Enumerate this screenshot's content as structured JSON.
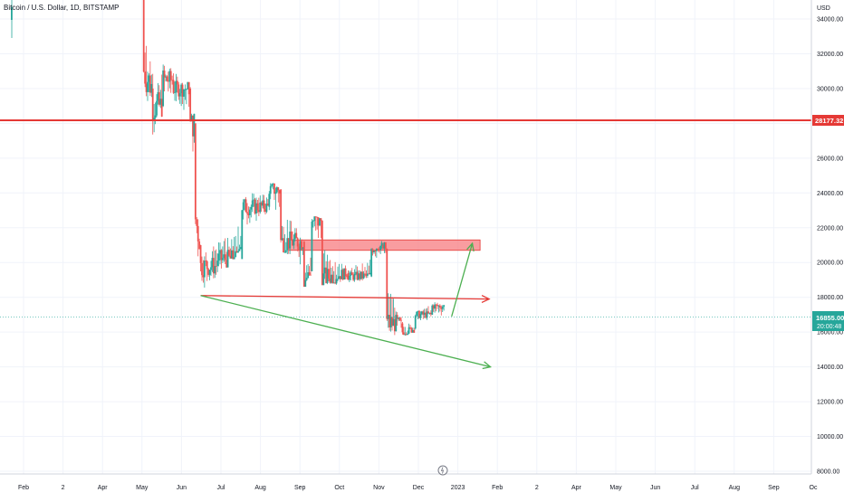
{
  "header": {
    "symbol_title": "Bitcoin / U.S. Dollar, 1D, BITSTAMP"
  },
  "price_axis": {
    "currency": "USD",
    "ticks": [
      "34000.00",
      "32000.00",
      "30000.00",
      "28000.00",
      "26000.00",
      "24000.00",
      "22000.00",
      "20000.00",
      "18000.00",
      "16000.00",
      "14000.00",
      "12000.00",
      "10000.00",
      "8000.00"
    ],
    "resistance_label": "28177.32",
    "current_price_label": "16855.00",
    "countdown_label": "20:00:48"
  },
  "time_axis": {
    "ticks": [
      "Feb",
      "2",
      "Apr",
      "May",
      "Jun",
      "Jul",
      "Aug",
      "Sep",
      "Oct",
      "Nov",
      "Dec",
      "2023",
      "Feb",
      "2",
      "Apr",
      "May",
      "Jun",
      "Jul",
      "Aug",
      "Sep",
      "Oc"
    ]
  },
  "colors": {
    "up": "#26a69a",
    "down": "#ef5350",
    "resistance_line": "#e53935",
    "trend_green": "#4caf50",
    "zone_fill": "#f77c80",
    "current_price_bg": "#26a69a"
  },
  "chart_data": {
    "type": "candlestick",
    "ylim": [
      7500,
      35500
    ],
    "grid": true,
    "ohlc_sample": [
      {
        "date": "2022-05-05",
        "open": 36500,
        "high": 36600,
        "low": 30000,
        "close": 31000
      },
      {
        "date": "2022-05-12",
        "open": 30000,
        "high": 31800,
        "low": 26500,
        "close": 29000
      },
      {
        "date": "2022-05-20",
        "open": 29000,
        "high": 32500,
        "low": 28500,
        "close": 30500
      },
      {
        "date": "2022-05-28",
        "open": 30500,
        "high": 31500,
        "low": 28800,
        "close": 30000
      },
      {
        "date": "2022-06-10",
        "open": 30000,
        "high": 30200,
        "low": 27500,
        "close": 28000
      },
      {
        "date": "2022-06-14",
        "open": 28000,
        "high": 28000,
        "low": 20500,
        "close": 22500
      },
      {
        "date": "2022-06-18",
        "open": 21000,
        "high": 21500,
        "low": 17600,
        "close": 19800
      },
      {
        "date": "2022-07-01",
        "open": 19800,
        "high": 21800,
        "low": 18800,
        "close": 20200
      },
      {
        "date": "2022-07-20",
        "open": 20200,
        "high": 24200,
        "low": 21000,
        "close": 23200
      },
      {
        "date": "2022-08-10",
        "open": 23200,
        "high": 24800,
        "low": 22800,
        "close": 24200
      },
      {
        "date": "2022-08-19",
        "open": 24200,
        "high": 24400,
        "low": 20800,
        "close": 21200
      },
      {
        "date": "2022-09-06",
        "open": 21200,
        "high": 21500,
        "low": 18600,
        "close": 19000
      },
      {
        "date": "2022-09-12",
        "open": 19500,
        "high": 22700,
        "low": 19400,
        "close": 22400
      },
      {
        "date": "2022-09-20",
        "open": 22400,
        "high": 22500,
        "low": 18700,
        "close": 19100
      },
      {
        "date": "2022-10-10",
        "open": 19400,
        "high": 20000,
        "low": 18600,
        "close": 19200
      },
      {
        "date": "2022-10-28",
        "open": 19200,
        "high": 21000,
        "low": 19000,
        "close": 20800
      },
      {
        "date": "2022-11-06",
        "open": 21000,
        "high": 21400,
        "low": 20200,
        "close": 20800
      },
      {
        "date": "2022-11-09",
        "open": 20800,
        "high": 20800,
        "low": 15600,
        "close": 16500
      },
      {
        "date": "2022-11-21",
        "open": 16500,
        "high": 16800,
        "low": 15600,
        "close": 16000
      },
      {
        "date": "2022-12-01",
        "open": 16200,
        "high": 17300,
        "low": 16000,
        "close": 17000
      },
      {
        "date": "2022-12-14",
        "open": 17000,
        "high": 18000,
        "low": 16800,
        "close": 17500
      },
      {
        "date": "2022-12-24",
        "open": 17500,
        "high": 17600,
        "low": 16400,
        "close": 16855
      }
    ],
    "annotations": [
      {
        "kind": "horizontal_line",
        "price": 28177.32
      },
      {
        "kind": "resistance_zone",
        "price_low": 20700,
        "price_high": 21300,
        "from": "2022-08-25",
        "to": "2023-01-20"
      },
      {
        "kind": "arrow_line",
        "from": {
          "date": "2022-06-18",
          "price": 18100
        },
        "to": {
          "date": "2023-01-27",
          "price": 17900
        }
      },
      {
        "kind": "arrow_line",
        "from": {
          "date": "2022-06-18",
          "price": 18100
        },
        "to": {
          "date": "2023-01-28",
          "price": 14000
        }
      },
      {
        "kind": "arrow_line",
        "from": {
          "date": "2022-12-29",
          "price": 16900
        },
        "to": {
          "date": "2023-01-14",
          "price": 21100
        }
      }
    ]
  }
}
